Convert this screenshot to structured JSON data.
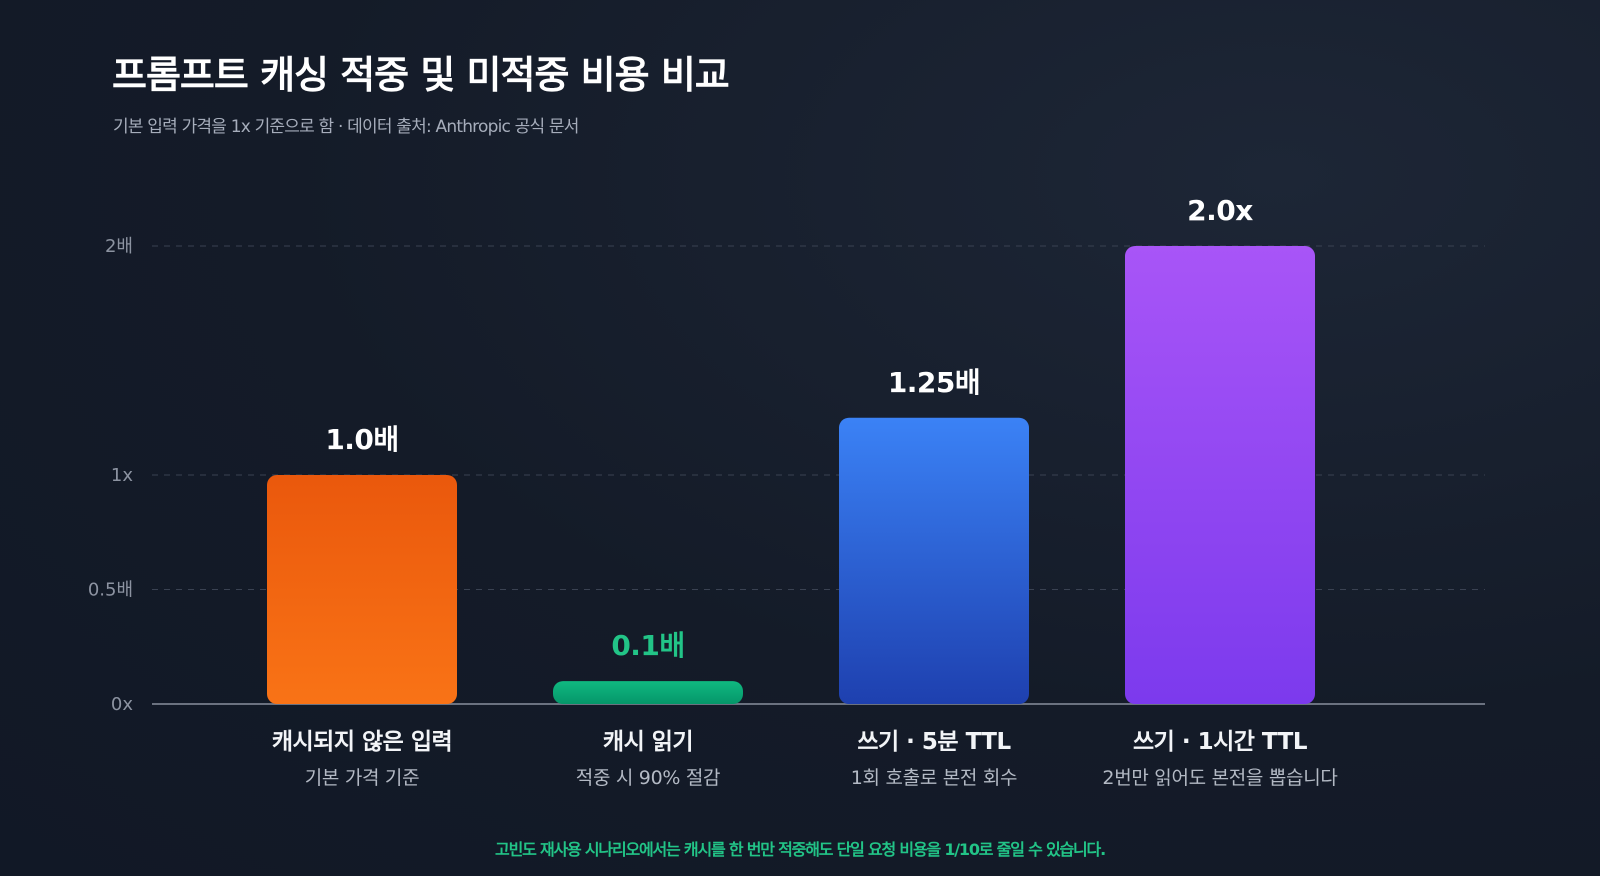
{
  "header": {
    "title": "프롬프트 캐싱 적중 및 미적중 비용 비교",
    "subtitle": "기본 입력 가격을 1x 기준으로 함 · 데이터 출처: Anthropic 공식 문서"
  },
  "footnote": "고빈도 재사용 시나리오에서는 캐시를 한 번만 적중해도 단일 요청 비용을 1/10로 줄일 수 있습니다.",
  "colors": {
    "background": "#151c2a",
    "axis": "#6b7280",
    "grid": "#3a4252",
    "tick_text": "#8c93a1",
    "label_text": "#f2f4f7",
    "sublabel_text": "#b3b9c4",
    "highlight": "#22c487"
  },
  "chart_data": {
    "type": "bar",
    "title": "프롬프트 캐싱 적중 및 미적중 비용 비교",
    "xlabel": "",
    "ylabel": "",
    "ylim": [
      0,
      2
    ],
    "grid": true,
    "legend": "none",
    "yticks": [
      {
        "value": 0,
        "label": "0x"
      },
      {
        "value": 0.5,
        "label": "0.5배"
      },
      {
        "value": 1,
        "label": "1x"
      },
      {
        "value": 2,
        "label": "2배"
      }
    ],
    "categories": [
      "캐시되지 않은 입력",
      "캐시 읽기",
      "쓰기 · 5분 TTL",
      "쓰기 · 1시간 TTL"
    ],
    "sublabels": [
      "기본 가격 기준",
      "적중 시 90% 절감",
      "1회 호출로 본전 회수",
      "2번만 읽어도 본전을 뽑습니다"
    ],
    "values": [
      1.0,
      0.1,
      1.25,
      2.0
    ],
    "value_labels": [
      "1.0배",
      "0.1배",
      "1.25배",
      "2.0x"
    ],
    "bar_colors": [
      [
        "#ea580c",
        "#f97316"
      ],
      [
        "#10b981",
        "#059669"
      ],
      [
        "#3b82f6",
        "#1e40af"
      ],
      [
        "#a855f7",
        "#7c3aed"
      ]
    ],
    "value_label_colors": [
      "#ffffff",
      "#22c487",
      "#ffffff",
      "#ffffff"
    ]
  }
}
